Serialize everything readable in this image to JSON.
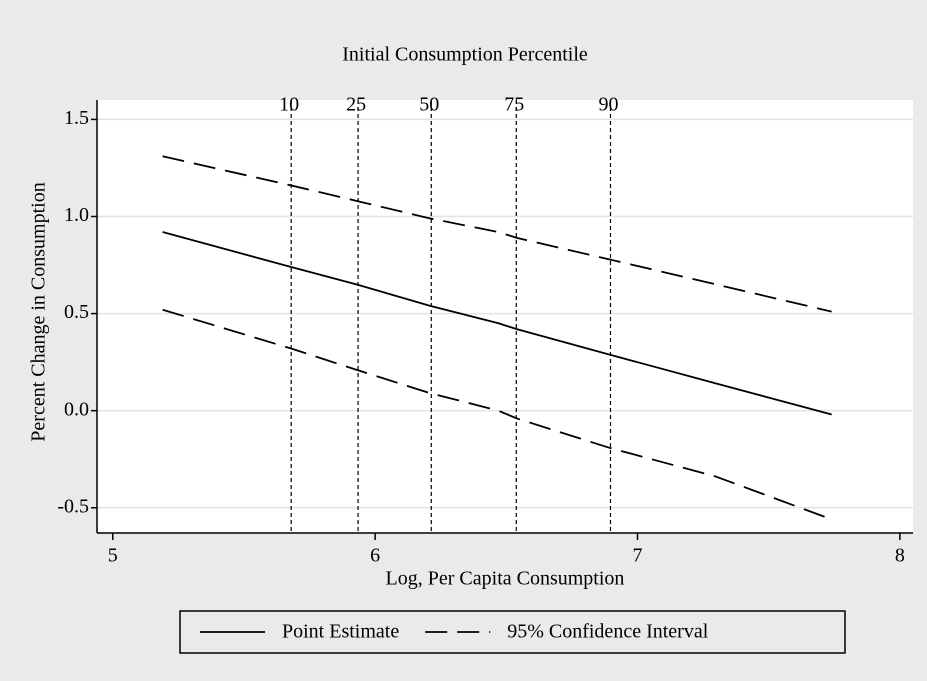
{
  "chart_data": {
    "type": "line",
    "top_axis_title": "Initial Consumption Percentile",
    "xlabel": "Log, Per Capita Consumption",
    "ylabel": "Percent Change in Consumption",
    "x": [
      5.19,
      5.68,
      5.93,
      6.21,
      6.47,
      6.54,
      6.89,
      7.3,
      7.74
    ],
    "series": [
      {
        "name": "Point Estimate",
        "color": "#000000",
        "dash": "solid",
        "values": [
          0.92,
          0.74,
          0.65,
          0.54,
          0.45,
          0.42,
          0.29,
          0.14,
          -0.02
        ]
      },
      {
        "name": "95% Confidence Interval",
        "color": "#000000",
        "dash": "dashed",
        "values": [
          1.31,
          1.16,
          1.08,
          0.99,
          0.92,
          0.89,
          0.78,
          0.65,
          0.51
        ]
      },
      {
        "name": "",
        "color": "#000000",
        "dash": "dashed",
        "values": [
          0.52,
          0.32,
          0.21,
          0.09,
          0.0,
          -0.04,
          -0.19,
          -0.34,
          -0.56
        ]
      }
    ],
    "xlim": [
      4.94,
      8.05
    ],
    "xticks": [
      5,
      6,
      7,
      8
    ],
    "ylim": [
      -0.63,
      1.6
    ],
    "yticks": [
      {
        "value": 1.5,
        "label": "1.5"
      },
      {
        "value": 1.0,
        "label": "1.0"
      },
      0.5,
      {
        "value": 0.0,
        "label": "0.0"
      },
      -0.5
    ],
    "top_ticks": [
      {
        "value": 5.68,
        "label": "10"
      },
      {
        "value": 5.935,
        "label": "25"
      },
      {
        "value": 6.214,
        "label": "50"
      },
      {
        "value": 6.538,
        "label": "75"
      },
      {
        "value": 6.897,
        "label": "90"
      }
    ],
    "grid": true
  }
}
